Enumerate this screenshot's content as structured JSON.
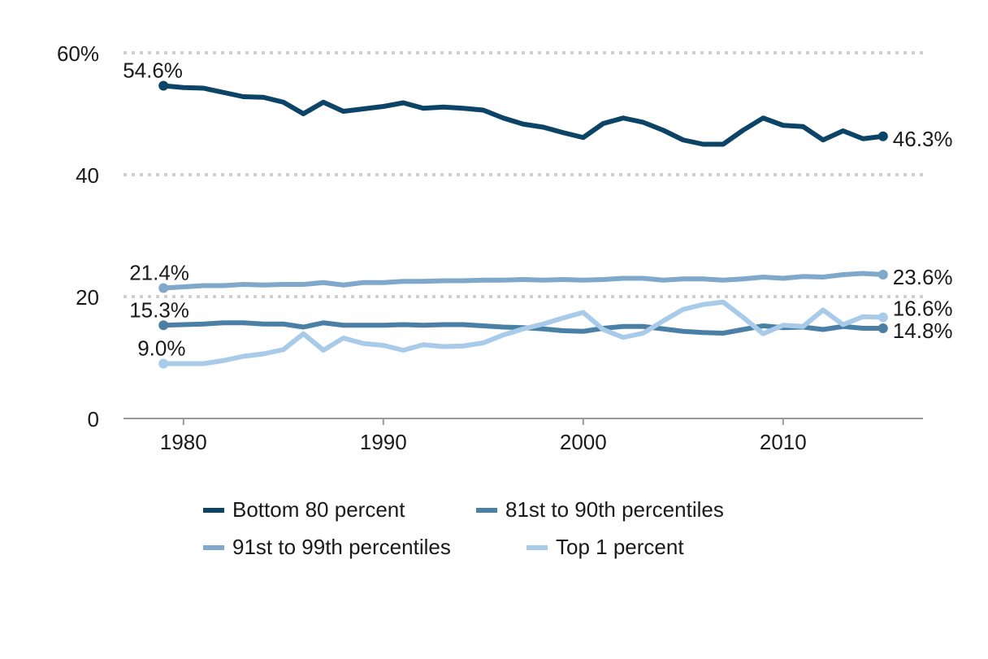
{
  "chart_data": {
    "type": "line",
    "title": "",
    "xlabel": "",
    "ylabel": "",
    "xlim": [
      1977,
      2017
    ],
    "ylim": [
      0,
      60
    ],
    "x_ticks": [
      1980,
      1990,
      2000,
      2010
    ],
    "y_ticks": [
      {
        "value": 0,
        "label": "0"
      },
      {
        "value": 20,
        "label": "20"
      },
      {
        "value": 40,
        "label": "40"
      },
      {
        "value": 60,
        "label": "60%"
      }
    ],
    "grid": true,
    "legend_position": "bottom",
    "x": [
      1979,
      1980,
      1981,
      1982,
      1983,
      1984,
      1985,
      1986,
      1987,
      1988,
      1989,
      1990,
      1991,
      1992,
      1993,
      1994,
      1995,
      1996,
      1997,
      1998,
      1999,
      2000,
      2001,
      2002,
      2003,
      2004,
      2005,
      2006,
      2007,
      2008,
      2009,
      2010,
      2011,
      2012,
      2013,
      2014,
      2015
    ],
    "series": [
      {
        "name": "Bottom 80 percent",
        "color": "#0b4466",
        "values": [
          54.6,
          54.3,
          54.2,
          53.5,
          52.8,
          52.7,
          51.9,
          50.0,
          51.9,
          50.4,
          50.8,
          51.2,
          51.8,
          50.9,
          51.1,
          50.9,
          50.6,
          49.3,
          48.3,
          47.8,
          46.9,
          46.1,
          48.4,
          49.3,
          48.6,
          47.3,
          45.7,
          45.0,
          45.0,
          47.3,
          49.3,
          48.1,
          47.9,
          45.7,
          47.2,
          45.9,
          46.3
        ],
        "start_label": "54.6%",
        "end_label": "46.3%"
      },
      {
        "name": "81st to 90th percentiles",
        "color": "#4a7fa6",
        "values": [
          15.3,
          15.4,
          15.5,
          15.7,
          15.7,
          15.5,
          15.5,
          15.0,
          15.7,
          15.3,
          15.3,
          15.3,
          15.4,
          15.3,
          15.4,
          15.4,
          15.2,
          15.0,
          14.9,
          14.7,
          14.4,
          14.3,
          14.8,
          15.1,
          15.1,
          14.7,
          14.3,
          14.1,
          14.0,
          14.6,
          15.2,
          14.9,
          15.0,
          14.6,
          15.1,
          14.8,
          14.8
        ],
        "start_label": "15.3%",
        "end_label": "14.8%"
      },
      {
        "name": "91st to 99th percentiles",
        "color": "#7fa8cb",
        "values": [
          21.4,
          21.6,
          21.8,
          21.8,
          22.0,
          21.9,
          22.0,
          22.0,
          22.3,
          21.9,
          22.3,
          22.3,
          22.5,
          22.5,
          22.6,
          22.6,
          22.7,
          22.7,
          22.8,
          22.7,
          22.8,
          22.7,
          22.8,
          23.0,
          23.0,
          22.7,
          22.9,
          22.9,
          22.7,
          22.9,
          23.2,
          23.0,
          23.3,
          23.2,
          23.6,
          23.8,
          23.6
        ],
        "start_label": "21.4%",
        "end_label": "23.6%"
      },
      {
        "name": "Top 1 percent",
        "color": "#a9cbea",
        "values": [
          9.0,
          9.0,
          9.0,
          9.5,
          10.2,
          10.6,
          11.3,
          13.9,
          11.2,
          13.2,
          12.3,
          12.0,
          11.2,
          12.1,
          11.8,
          11.9,
          12.4,
          13.7,
          14.7,
          15.5,
          16.5,
          17.4,
          14.6,
          13.3,
          14.0,
          16.0,
          17.9,
          18.7,
          19.1,
          16.6,
          13.9,
          15.3,
          15.1,
          17.8,
          15.4,
          16.7,
          16.6
        ],
        "start_label": "9.0%",
        "end_label": "16.6%"
      }
    ]
  }
}
